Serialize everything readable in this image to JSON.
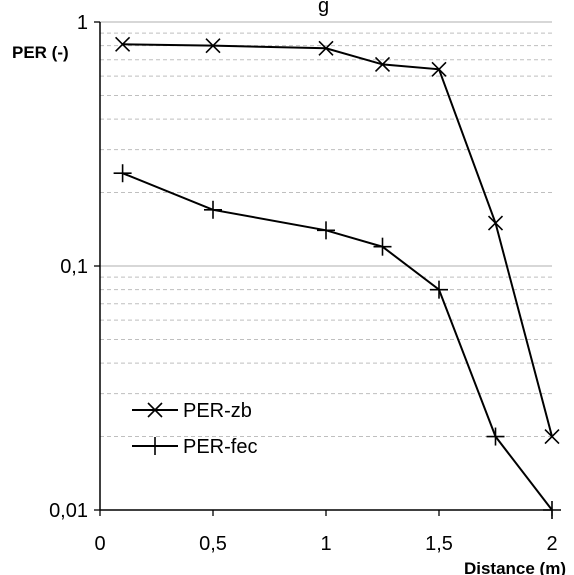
{
  "chart_data": {
    "type": "line",
    "title_fragment": "g",
    "xlabel": "Distance (m)",
    "ylabel": "PER (-)",
    "xlim": [
      0,
      2
    ],
    "ylim": [
      0.01,
      1
    ],
    "y_scale": "log",
    "x_ticks": [
      "0",
      "0,5",
      "1",
      "1,5",
      "2"
    ],
    "y_ticks": [
      "0,01",
      "0,1",
      "1"
    ],
    "grid": "horizontal major and minor",
    "legend_position": "lower-left",
    "series": [
      {
        "name": "PER-zb",
        "marker": "x",
        "x": [
          0.1,
          0.5,
          1.0,
          1.25,
          1.5,
          1.75,
          2.0
        ],
        "y": [
          0.81,
          0.8,
          0.78,
          0.67,
          0.64,
          0.15,
          0.02
        ]
      },
      {
        "name": "PER-fec",
        "marker": "+",
        "x": [
          0.1,
          0.5,
          1.0,
          1.25,
          1.5,
          1.75,
          2.0
        ],
        "y": [
          0.24,
          0.17,
          0.14,
          0.12,
          0.08,
          0.02,
          0.01
        ]
      }
    ],
    "colors": {
      "line": "#000000",
      "major_grid": "#bfbfbf",
      "minor_grid": "#bfbfbf"
    }
  }
}
